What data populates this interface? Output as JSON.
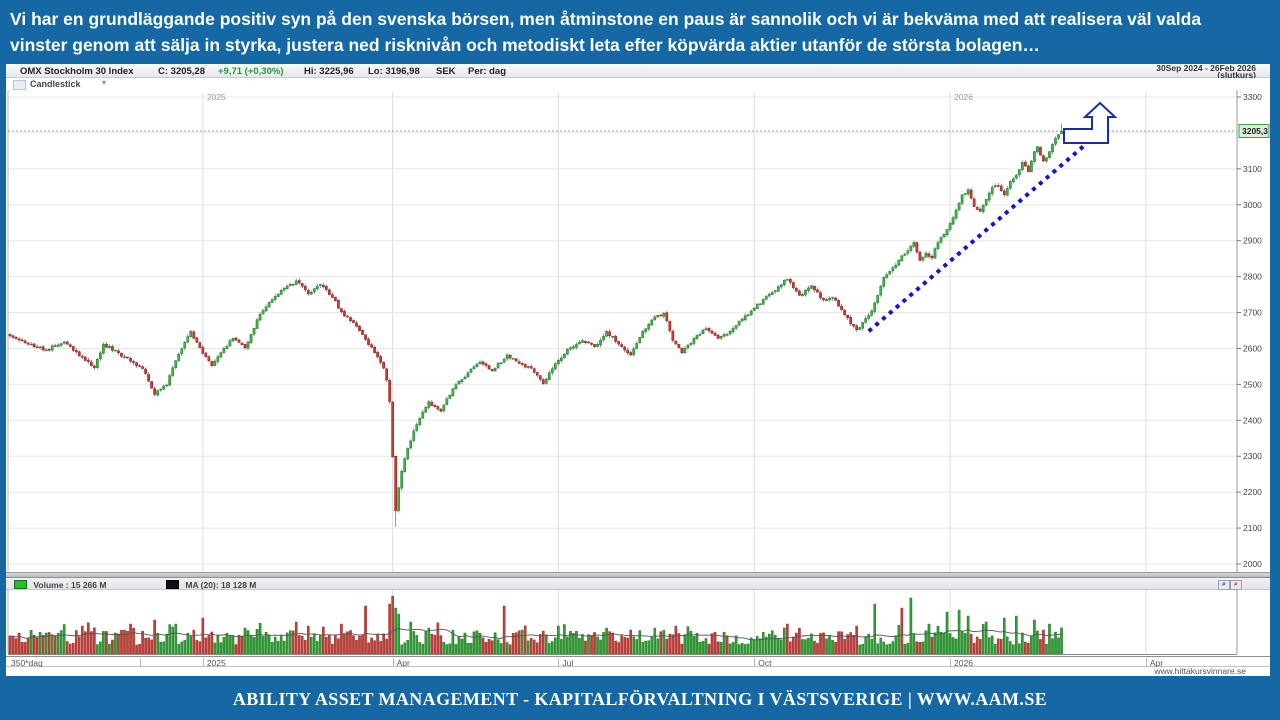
{
  "banner_top": {
    "line1": "Vi har en grundläggande positiv syn på den svenska börsen, men åtminstone en paus är sannolik och vi är bekväma med att realisera väl valda",
    "line2": "vinster genom att sälja in styrka, justera ned risknivån och metodiskt leta efter köpvärda aktier utanför de största bolagen…"
  },
  "banner_bottom": {
    "text": "ABILITY ASSET MANAGEMENT -  KAPITALFÖRVALTNING I VÄSTSVERIGE   |   WWW.AAM.SE"
  },
  "header": {
    "title": "OMX Stockholm 30 Index",
    "close_label": "C: 3205,28",
    "change_label": "+9,71 (+0,30%)",
    "hi_label": "Hi: 3225,96",
    "lo_label": "Lo: 3196,98",
    "currency": "SEK",
    "period_label": "Per: dag",
    "date_range": "30Sep 2024 - 26Feb 2026",
    "date_range_sub": "(slutkurs)",
    "chart_type": "Candlestick",
    "caret": "▾"
  },
  "axis": {
    "left_box_label": "350*dag",
    "watermark": "www.hittakursvinnare.se",
    "last_price_label": "3205,3"
  },
  "volume_legend": {
    "volume_label": "Volume : 15 266 M",
    "ma_label": "MA (20): 18 128 M",
    "zoom_in_glyph": "⌕",
    "zoom_out_glyph": "⌕"
  },
  "colors": {
    "banner_blue": "#1568a3",
    "candle_up_fill": "#44b14e",
    "candle_up_stroke": "#1b7a24",
    "candle_down_fill": "#cc3b36",
    "candle_down_stroke": "#8f201c",
    "wick": "#777777",
    "grid": "#e7e7ea",
    "vgrid": "#dcdcdf",
    "trendline_blue": "#1414c8",
    "arrow_blue": "#1c2fa0",
    "price_label_bg": "#d9efd9",
    "price_label_border": "#3da04a",
    "ma_line": "#555555"
  },
  "chart_data": {
    "type": "candlestick",
    "title": "OMX Stockholm 30 Index",
    "period": "dag",
    "date_range": "30Sep 2024 - 26Feb 2026",
    "last": {
      "close": 3205.28,
      "change": 9.71,
      "change_pct": 0.3,
      "high": 3225.96,
      "low": 3196.98,
      "currency": "SEK"
    },
    "days": 350,
    "ylim": [
      2000,
      3300
    ],
    "y_ticks": [
      3300,
      3100,
      3000,
      2900,
      2800,
      2700,
      2600,
      2500,
      2400,
      2300,
      2200,
      2100,
      2000
    ],
    "y_gridlines": [
      3300,
      3200,
      3100,
      3000,
      2900,
      2800,
      2700,
      2600,
      2500,
      2400,
      2300,
      2200,
      2100,
      2000
    ],
    "x_labels": [
      {
        "label": "2025",
        "day": 64,
        "year": true
      },
      {
        "label": "Apr",
        "day": 127,
        "year": false
      },
      {
        "label": "Jul",
        "day": 182,
        "year": false
      },
      {
        "label": "Oct",
        "day": 247,
        "year": false
      },
      {
        "label": "2026",
        "day": 312,
        "year": true
      },
      {
        "label": "Apr",
        "day": 377,
        "year": false
      }
    ],
    "close_anchors": [
      [
        0,
        2635
      ],
      [
        6,
        2612
      ],
      [
        12,
        2596
      ],
      [
        18,
        2618
      ],
      [
        24,
        2576
      ],
      [
        28,
        2546
      ],
      [
        31,
        2612
      ],
      [
        36,
        2588
      ],
      [
        40,
        2564
      ],
      [
        44,
        2544
      ],
      [
        48,
        2472
      ],
      [
        52,
        2498
      ],
      [
        55,
        2566
      ],
      [
        60,
        2648
      ],
      [
        64,
        2586
      ],
      [
        67,
        2552
      ],
      [
        70,
        2588
      ],
      [
        74,
        2628
      ],
      [
        78,
        2602
      ],
      [
        82,
        2680
      ],
      [
        86,
        2728
      ],
      [
        90,
        2762
      ],
      [
        95,
        2788
      ],
      [
        99,
        2752
      ],
      [
        103,
        2778
      ],
      [
        107,
        2742
      ],
      [
        110,
        2702
      ],
      [
        114,
        2672
      ],
      [
        118,
        2625
      ],
      [
        121,
        2588
      ],
      [
        124,
        2545
      ],
      [
        125,
        2512
      ],
      [
        126,
        2452
      ],
      [
        127,
        2298
      ],
      [
        128,
        2148
      ],
      [
        129,
        2212
      ],
      [
        130,
        2258
      ],
      [
        132,
        2322
      ],
      [
        135,
        2388
      ],
      [
        139,
        2452
      ],
      [
        143,
        2425
      ],
      [
        147,
        2488
      ],
      [
        152,
        2532
      ],
      [
        156,
        2562
      ],
      [
        160,
        2538
      ],
      [
        165,
        2582
      ],
      [
        169,
        2558
      ],
      [
        173,
        2545
      ],
      [
        177,
        2502
      ],
      [
        181,
        2558
      ],
      [
        185,
        2598
      ],
      [
        190,
        2622
      ],
      [
        194,
        2605
      ],
      [
        198,
        2648
      ],
      [
        202,
        2612
      ],
      [
        206,
        2582
      ],
      [
        210,
        2648
      ],
      [
        214,
        2688
      ],
      [
        217,
        2698
      ],
      [
        220,
        2622
      ],
      [
        223,
        2588
      ],
      [
        227,
        2628
      ],
      [
        231,
        2655
      ],
      [
        235,
        2628
      ],
      [
        239,
        2648
      ],
      [
        243,
        2682
      ],
      [
        247,
        2712
      ],
      [
        251,
        2745
      ],
      [
        255,
        2772
      ],
      [
        258,
        2792
      ],
      [
        262,
        2748
      ],
      [
        266,
        2775
      ],
      [
        270,
        2735
      ],
      [
        273,
        2742
      ],
      [
        276,
        2708
      ],
      [
        279,
        2668
      ],
      [
        281,
        2652
      ],
      [
        283,
        2672
      ],
      [
        286,
        2705
      ],
      [
        288,
        2748
      ],
      [
        290,
        2798
      ],
      [
        292,
        2815
      ],
      [
        294,
        2832
      ],
      [
        296,
        2858
      ],
      [
        298,
        2872
      ],
      [
        300,
        2895
      ],
      [
        302,
        2845
      ],
      [
        304,
        2865
      ],
      [
        306,
        2852
      ],
      [
        308,
        2895
      ],
      [
        310,
        2918
      ],
      [
        312,
        2948
      ],
      [
        314,
        2985
      ],
      [
        316,
        3028
      ],
      [
        318,
        3042
      ],
      [
        320,
        2995
      ],
      [
        322,
        2982
      ],
      [
        324,
        3015
      ],
      [
        326,
        3048
      ],
      [
        328,
        3052
      ],
      [
        330,
        3028
      ],
      [
        332,
        3065
      ],
      [
        334,
        3082
      ],
      [
        336,
        3118
      ],
      [
        338,
        3092
      ],
      [
        340,
        3148
      ],
      [
        341,
        3162
      ],
      [
        343,
        3122
      ],
      [
        345,
        3148
      ],
      [
        347,
        3185
      ],
      [
        348,
        3195
      ],
      [
        349,
        3205.28
      ]
    ],
    "extreme_low": {
      "day": 128,
      "low": 2103
    },
    "trendline": {
      "day1": 285,
      "price1": 2648,
      "day2": 357,
      "price2": 3168,
      "style": "dotted-blue"
    },
    "annotation": "breakout-arrow-up",
    "volume": {
      "last_label": "15 266 M",
      "ma20_label": "18 128 M",
      "spikes": [
        [
          24,
          28,
          "r"
        ],
        [
          40,
          30,
          "r"
        ],
        [
          48,
          34,
          "r"
        ],
        [
          55,
          30,
          "g"
        ],
        [
          64,
          36,
          "r"
        ],
        [
          78,
          26,
          "g"
        ],
        [
          95,
          32,
          "r"
        ],
        [
          99,
          28,
          "r"
        ],
        [
          110,
          30,
          "r"
        ],
        [
          118,
          48,
          "r"
        ],
        [
          126,
          50,
          "r"
        ],
        [
          127,
          58,
          "r"
        ],
        [
          128,
          46,
          "g"
        ],
        [
          129,
          40,
          "g"
        ],
        [
          133,
          32,
          "g"
        ],
        [
          139,
          26,
          "g"
        ],
        [
          164,
          48,
          "r"
        ],
        [
          170,
          24,
          "g"
        ],
        [
          182,
          28,
          "g"
        ],
        [
          198,
          26,
          "g"
        ],
        [
          206,
          24,
          "r"
        ],
        [
          214,
          26,
          "g"
        ],
        [
          221,
          28,
          "r"
        ],
        [
          258,
          30,
          "r"
        ],
        [
          262,
          26,
          "r"
        ],
        [
          281,
          28,
          "r"
        ],
        [
          287,
          50,
          "g"
        ],
        [
          296,
          46,
          "r"
        ],
        [
          299,
          56,
          "g"
        ],
        [
          305,
          30,
          "g"
        ],
        [
          311,
          42,
          "g"
        ],
        [
          315,
          44,
          "g"
        ],
        [
          318,
          38,
          "g"
        ],
        [
          324,
          32,
          "g"
        ],
        [
          330,
          36,
          "g"
        ],
        [
          334,
          38,
          "g"
        ],
        [
          340,
          34,
          "g"
        ],
        [
          345,
          30,
          "g"
        ]
      ],
      "seed": 20260226
    }
  }
}
